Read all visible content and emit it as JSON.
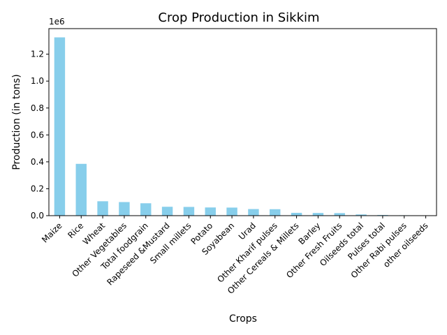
{
  "chart_data": {
    "type": "bar",
    "title": "Crop Production in Sikkim",
    "xlabel": "Crops",
    "ylabel": "Production (in tons)",
    "y_offset_label": "1e6",
    "bar_color": "#87CEEB",
    "ylim": [
      0,
      1.39
    ],
    "yticks": [
      0.0,
      0.2,
      0.4,
      0.6,
      0.8,
      1.0,
      1.2
    ],
    "ytick_labels": [
      "0.0",
      "0.2",
      "0.4",
      "0.6",
      "0.8",
      "1.0",
      "1.2"
    ],
    "grid": false,
    "categories": [
      "Maize",
      "Rice",
      "Wheat",
      "Other Vegetables",
      "Total foodgrain",
      "Rapeseed &Mustard",
      "Small millets",
      "Potato",
      "Soyabean",
      "Urad",
      "Other Kharif pulses",
      "Other Cereals & Millets",
      "Barley",
      "Other Fresh Fruits",
      "Oilseeds total",
      "Pulses total",
      "Other  Rabi pulses",
      "other oilseeds"
    ],
    "values": [
      1.325,
      0.385,
      0.107,
      0.101,
      0.092,
      0.066,
      0.065,
      0.061,
      0.06,
      0.049,
      0.048,
      0.021,
      0.02,
      0.019,
      0.009,
      0.005,
      0.003,
      0.001
    ]
  }
}
